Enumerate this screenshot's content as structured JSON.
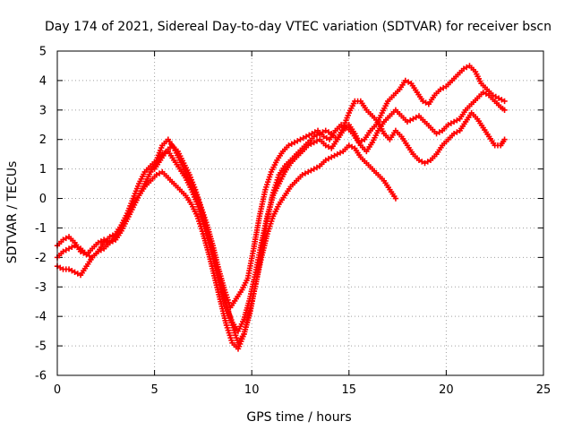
{
  "chart_data": {
    "type": "scatter",
    "title": "Day 174 of 2021, Sidereal Day-to-day VTEC variation (SDTVAR) for receiver bscn",
    "xlabel": "GPS time / hours",
    "ylabel": "SDTVAR / TECUs",
    "xlim": [
      0,
      25
    ],
    "ylim": [
      -6,
      5
    ],
    "xticks": [
      0,
      5,
      10,
      15,
      20,
      25
    ],
    "xtick_labels": [
      "0",
      "5",
      "10",
      "15",
      "20",
      "25"
    ],
    "yticks": [
      5,
      4,
      3,
      2,
      1,
      0,
      -1,
      -2,
      -3,
      -4,
      -5,
      -6
    ],
    "ytick_labels": [
      "5",
      "4",
      "3",
      "2",
      "1",
      "0",
      "-1",
      "-2",
      "-3",
      "-4",
      "-5",
      "-6"
    ],
    "grid": true,
    "marker": "+",
    "color": "#ff0000",
    "series": [
      {
        "x": [
          0.0,
          0.3,
          0.6,
          0.9,
          1.2,
          1.5,
          1.8,
          2.1,
          2.4,
          2.7,
          3.0,
          3.3,
          3.6,
          3.9,
          4.2,
          4.5,
          4.8,
          5.1,
          5.4,
          5.7,
          6.0,
          6.3,
          6.6,
          6.9,
          7.2,
          7.5,
          7.8,
          8.1,
          8.4,
          8.7,
          9.0,
          9.3,
          9.6,
          9.9,
          10.2,
          10.5,
          10.8,
          11.1,
          11.4,
          11.7,
          12.0,
          12.3,
          12.6,
          12.9,
          13.2,
          13.5,
          13.8,
          14.1,
          14.4,
          14.7,
          15.0,
          15.3,
          15.6,
          15.9,
          16.2,
          16.5,
          16.8,
          17.1,
          17.4
        ],
        "y": [
          -2.3,
          -2.4,
          -2.4,
          -2.5,
          -2.6,
          -2.3,
          -2.0,
          -1.8,
          -1.7,
          -1.5,
          -1.3,
          -1.0,
          -0.6,
          -0.2,
          0.1,
          0.4,
          0.6,
          0.8,
          0.9,
          0.7,
          0.5,
          0.3,
          0.1,
          -0.2,
          -0.6,
          -1.2,
          -1.9,
          -2.7,
          -3.5,
          -4.3,
          -4.9,
          -5.1,
          -4.6,
          -3.8,
          -2.9,
          -2.0,
          -1.2,
          -0.6,
          -0.2,
          0.1,
          0.4,
          0.6,
          0.8,
          0.9,
          1.0,
          1.1,
          1.3,
          1.4,
          1.5,
          1.6,
          1.8,
          1.7,
          1.4,
          1.2,
          1.0,
          0.8,
          0.6,
          0.3,
          0.0
        ]
      },
      {
        "x": [
          0.0,
          0.3,
          0.6,
          0.9,
          1.2,
          1.5,
          1.8,
          2.1,
          2.4,
          2.7,
          3.0,
          3.3,
          3.6,
          3.9,
          4.2,
          4.5,
          4.8,
          5.1,
          5.4,
          5.7,
          6.0,
          6.3,
          6.6,
          6.9,
          7.2,
          7.5,
          7.8,
          8.1,
          8.4,
          8.7,
          9.0,
          9.3,
          9.6,
          9.9,
          10.2,
          10.5,
          10.8,
          11.1,
          11.4,
          11.7,
          12.0,
          12.3,
          12.6,
          12.9,
          13.2,
          13.5,
          13.8,
          14.1,
          14.4,
          14.7,
          15.0,
          15.3,
          15.6,
          15.9,
          16.2,
          16.5,
          16.8,
          17.1,
          17.4,
          17.7,
          18.0,
          18.3,
          18.6,
          18.9,
          19.2,
          19.5,
          19.8,
          20.1,
          20.4,
          20.7,
          21.0,
          21.3,
          21.6,
          21.9,
          22.2,
          22.5,
          22.8,
          23.0
        ],
        "y": [
          -1.6,
          -1.4,
          -1.3,
          -1.5,
          -1.8,
          -1.9,
          -1.7,
          -1.5,
          -1.4,
          -1.5,
          -1.4,
          -1.1,
          -0.7,
          -0.3,
          0.1,
          0.5,
          0.9,
          1.2,
          1.5,
          1.6,
          1.3,
          1.0,
          0.7,
          0.3,
          -0.2,
          -0.8,
          -1.5,
          -2.2,
          -3.0,
          -3.7,
          -4.2,
          -4.5,
          -4.1,
          -3.4,
          -2.5,
          -1.5,
          -0.6,
          0.1,
          0.5,
          0.9,
          1.2,
          1.4,
          1.6,
          1.8,
          1.9,
          2.0,
          1.8,
          1.7,
          2.0,
          2.3,
          2.5,
          2.2,
          1.8,
          1.6,
          1.9,
          2.3,
          2.6,
          2.8,
          3.0,
          2.8,
          2.6,
          2.7,
          2.8,
          2.6,
          2.4,
          2.2,
          2.3,
          2.5,
          2.6,
          2.7,
          3.0,
          3.2,
          3.4,
          3.6,
          3.5,
          3.3,
          3.1,
          3.0
        ]
      },
      {
        "x": [
          0.0,
          0.3,
          0.6,
          0.9,
          1.2,
          1.5,
          1.8,
          2.1,
          2.4,
          2.7,
          3.0,
          3.3,
          3.6,
          3.9,
          4.2,
          4.5,
          4.8,
          5.1,
          5.4,
          5.7,
          6.0,
          6.3,
          6.6,
          6.9,
          7.2,
          7.5,
          7.8,
          8.1,
          8.4,
          8.7,
          9.0,
          9.3,
          9.6,
          9.9,
          10.2,
          10.5,
          10.8,
          11.1,
          11.4,
          11.7,
          12.0,
          12.3,
          12.6,
          12.9,
          13.2,
          13.5,
          13.8,
          14.1,
          14.4,
          14.7,
          15.0,
          15.3,
          15.6,
          15.9,
          16.2,
          16.5,
          16.8,
          17.1,
          17.4,
          17.7,
          18.0,
          18.3,
          18.6,
          18.9,
          19.2,
          19.5,
          19.8,
          20.1,
          20.4,
          20.7,
          21.0,
          21.3,
          21.6,
          21.9,
          22.2,
          22.5,
          22.8,
          23.0
        ],
        "y": [
          -2.0,
          -1.8,
          -1.7,
          -1.6,
          -1.7,
          -1.9,
          -2.0,
          -1.8,
          -1.5,
          -1.3,
          -1.2,
          -0.9,
          -0.5,
          0.0,
          0.5,
          0.9,
          1.1,
          1.3,
          1.8,
          2.0,
          1.7,
          1.3,
          0.9,
          0.5,
          0.0,
          -0.6,
          -1.3,
          -2.0,
          -2.8,
          -3.6,
          -4.3,
          -4.9,
          -4.6,
          -3.9,
          -2.9,
          -1.8,
          -0.7,
          0.2,
          0.8,
          1.1,
          1.3,
          1.5,
          1.7,
          1.9,
          2.1,
          2.2,
          2.3,
          2.2,
          2.0,
          2.4,
          2.9,
          3.3,
          3.3,
          3.0,
          2.8,
          2.6,
          2.2,
          2.0,
          2.3,
          2.1,
          1.8,
          1.5,
          1.3,
          1.2,
          1.3,
          1.5,
          1.8,
          2.0,
          2.2,
          2.3,
          2.6,
          2.9,
          2.7,
          2.4,
          2.1,
          1.8,
          1.8,
          2.0
        ]
      },
      {
        "x": [
          5.0,
          5.3,
          5.6,
          5.9,
          6.2,
          6.5,
          6.8,
          7.1,
          7.4,
          7.7,
          8.0,
          8.3,
          8.6,
          8.9,
          9.2,
          9.5,
          9.8,
          10.1,
          10.4,
          10.7,
          11.0,
          11.3,
          11.6,
          11.9,
          12.2,
          12.5,
          12.8,
          13.1,
          13.4,
          13.7,
          14.0,
          14.3,
          14.6,
          14.9,
          15.2,
          15.5,
          15.8,
          16.1,
          16.4,
          16.7,
          17.0,
          17.3,
          17.6,
          17.9,
          18.2,
          18.5,
          18.8,
          19.1,
          19.4,
          19.7,
          20.0,
          20.3,
          20.6,
          20.9,
          21.2,
          21.5,
          21.8,
          22.1,
          22.4,
          22.7,
          23.0
        ],
        "y": [
          1.0,
          1.3,
          1.6,
          1.8,
          1.6,
          1.2,
          0.8,
          0.3,
          -0.3,
          -0.9,
          -1.6,
          -2.4,
          -3.1,
          -3.7,
          -3.4,
          -3.1,
          -2.7,
          -1.7,
          -0.6,
          0.3,
          0.9,
          1.3,
          1.6,
          1.8,
          1.9,
          2.0,
          2.1,
          2.2,
          2.3,
          2.1,
          2.0,
          2.3,
          2.5,
          2.4,
          2.2,
          1.9,
          2.0,
          2.3,
          2.5,
          2.9,
          3.3,
          3.5,
          3.7,
          4.0,
          3.9,
          3.6,
          3.3,
          3.2,
          3.5,
          3.7,
          3.8,
          4.0,
          4.2,
          4.4,
          4.5,
          4.3,
          3.9,
          3.7,
          3.5,
          3.4,
          3.3
        ]
      }
    ]
  }
}
